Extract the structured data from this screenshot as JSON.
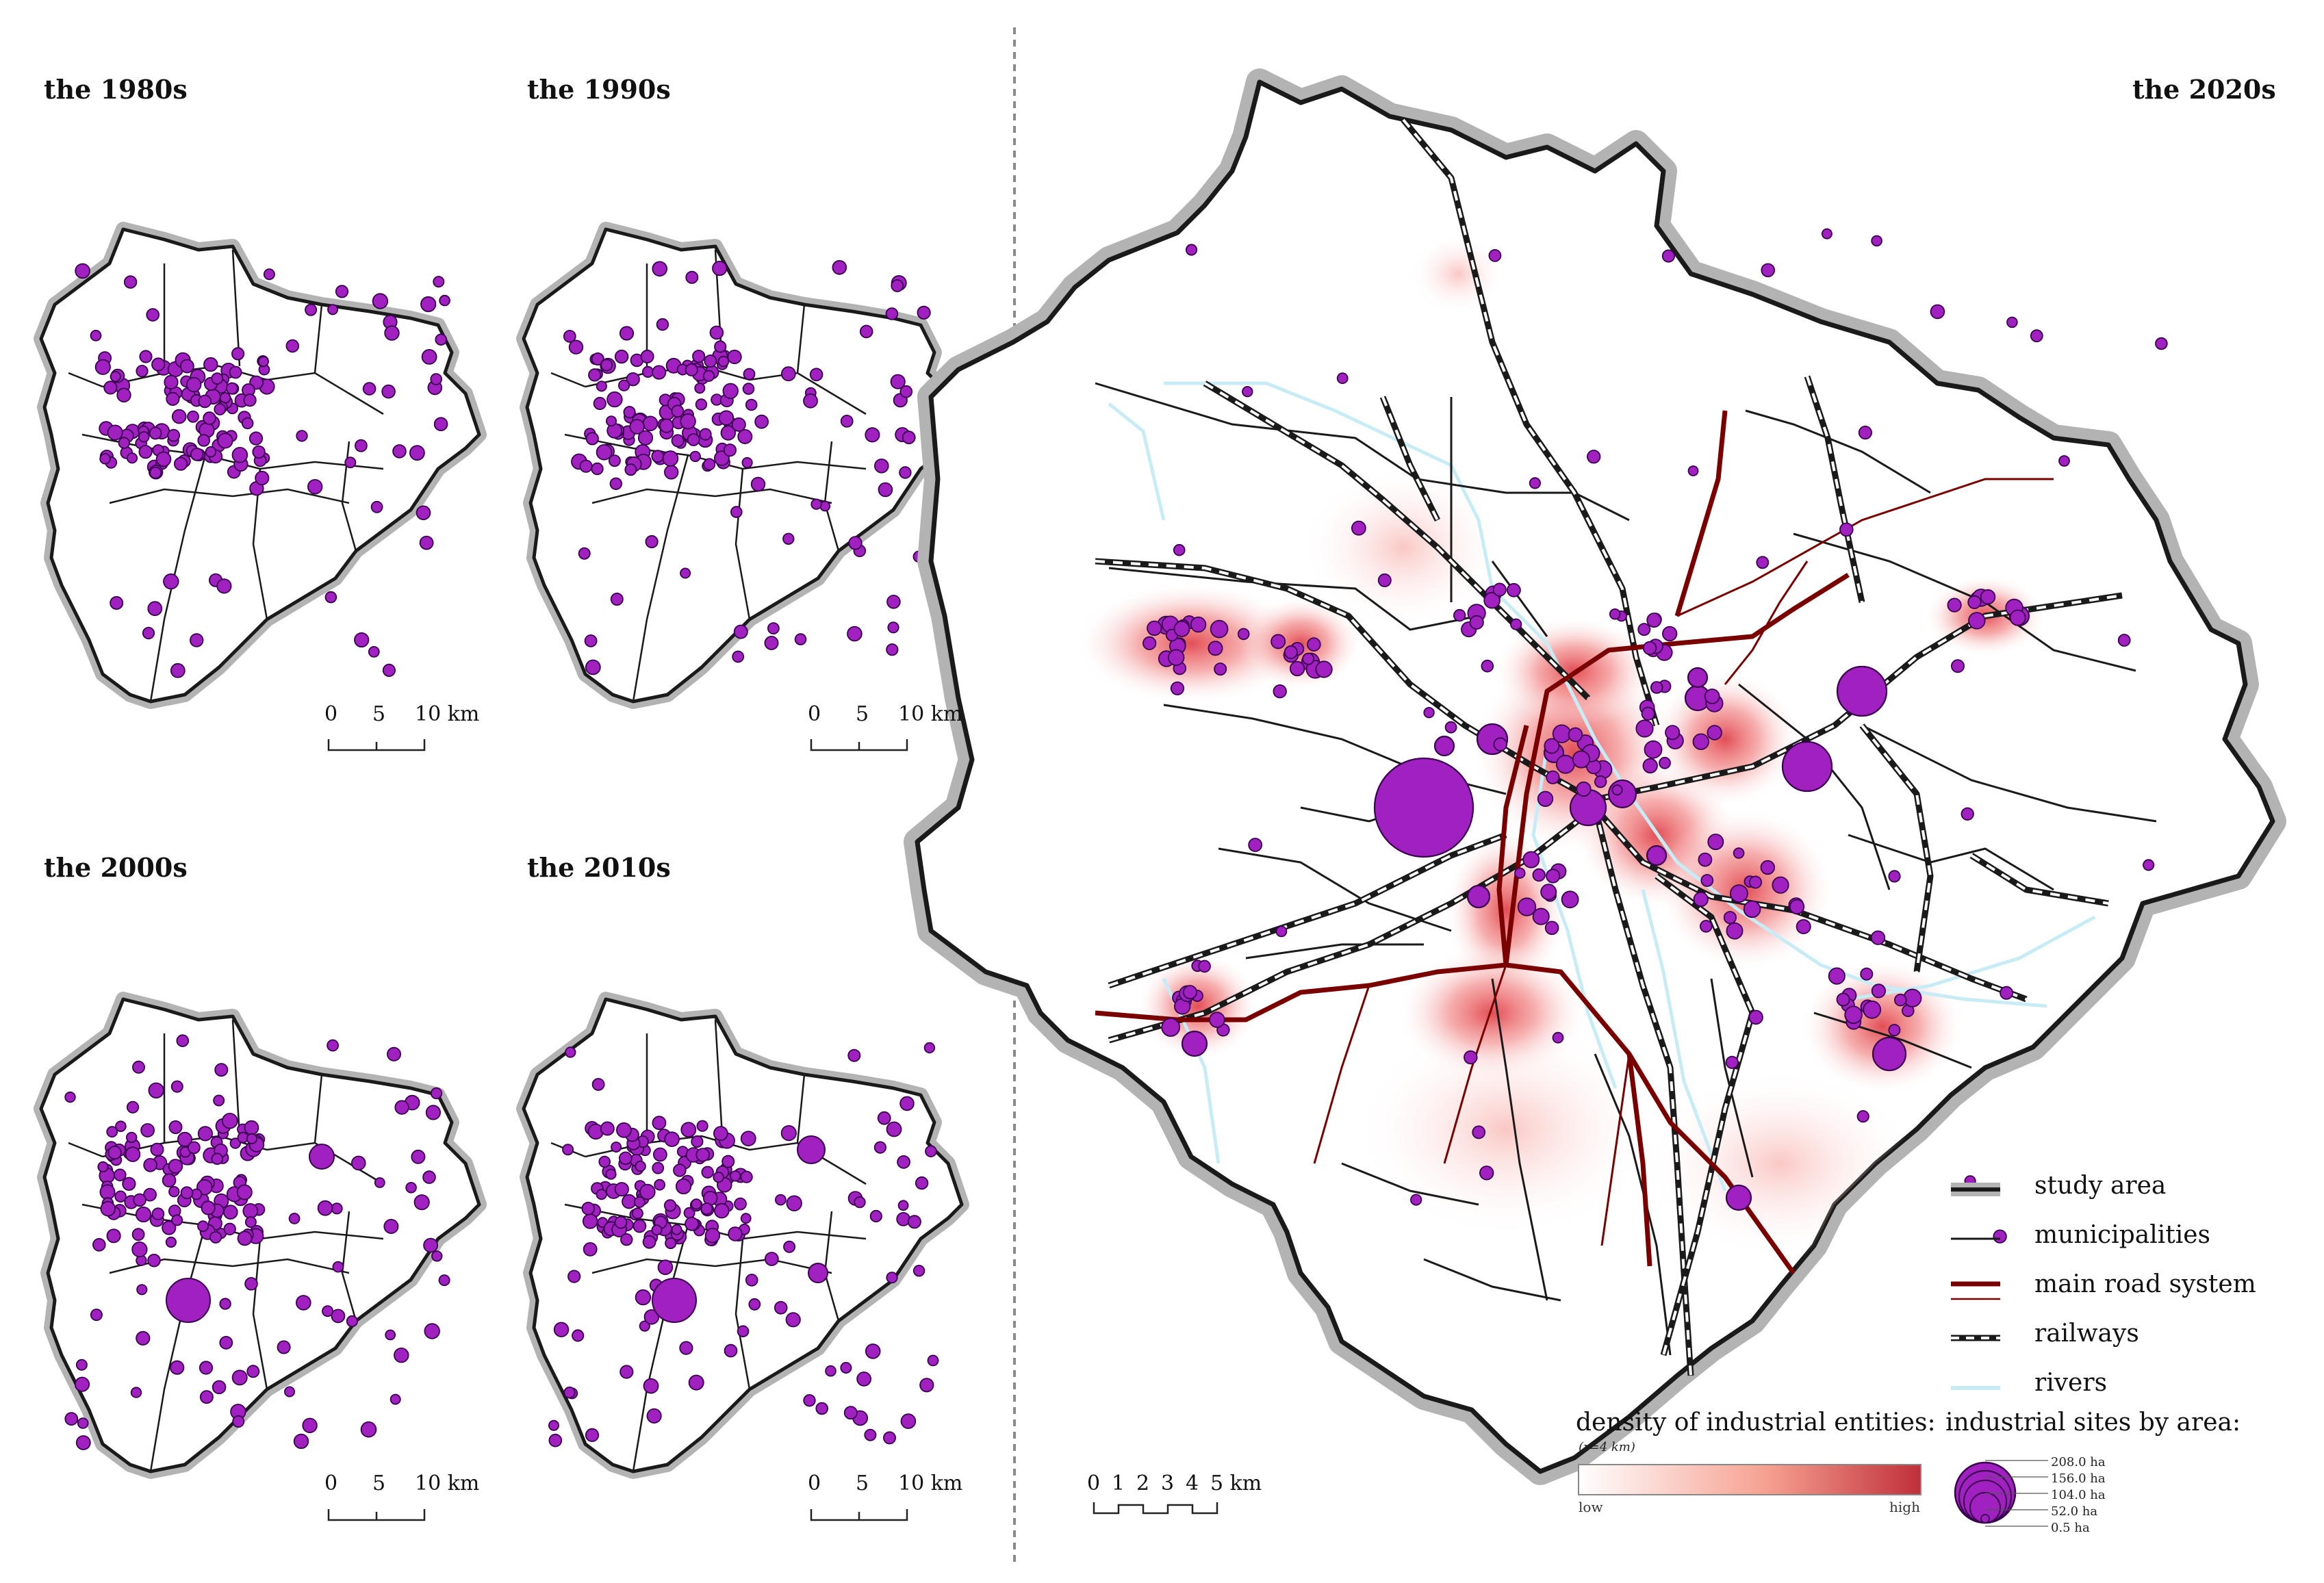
{
  "panels": [
    {
      "title": "the 1980s"
    },
    {
      "title": "the 1990s"
    },
    {
      "title": "the 2000s"
    },
    {
      "title": "the 2010s"
    },
    {
      "title": "the 2020s"
    }
  ],
  "scalebar_small": {
    "ticks": [
      "0",
      "5",
      "10 km"
    ]
  },
  "scalebar_main": {
    "ticks": [
      "0",
      "1",
      "2",
      "3",
      "4",
      "5 km"
    ]
  },
  "legend": {
    "items": [
      {
        "symbol": "study-area",
        "label": "study area"
      },
      {
        "symbol": "municipalities",
        "label": "municipalities"
      },
      {
        "symbol": "main-road",
        "label": "main road system"
      },
      {
        "symbol": "railways",
        "label": "railways"
      },
      {
        "symbol": "rivers",
        "label": "rivers"
      }
    ],
    "density_title": "density of industrial entities:",
    "density_note": "(r=4 km)",
    "density_low": "low",
    "density_high": "high",
    "sites_title": "industrial sites by area:",
    "sites_sizes": [
      "208.0 ha",
      "156.0 ha",
      "104.0 ha",
      "52.0 ha",
      "0.5 ha"
    ]
  },
  "colors": {
    "site_fill": "#a020c0",
    "site_stroke": "#3a0050",
    "study_area": "#b3b3b3",
    "municipalities": "#1a1a1a",
    "main_road": "#7a0000",
    "railways": "#1a1a1a",
    "rivers": "#c8ecf6",
    "density_low": "#ffffff",
    "density_high": "#c0303a"
  }
}
